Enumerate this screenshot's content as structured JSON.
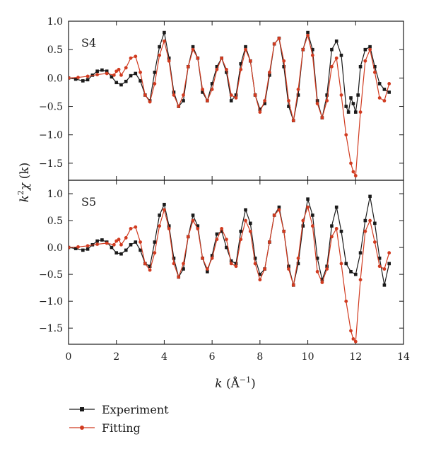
{
  "chart_data": [
    {
      "type": "line",
      "panel_label": "S4",
      "ylabel": "k²χ (k)",
      "xlim": [
        0,
        14
      ],
      "ylim": [
        -1.8,
        1.0
      ],
      "yticks": [
        1.0,
        0.5,
        0.0,
        -0.5,
        -1.0,
        -1.5
      ],
      "ytick_labels": [
        "1.0",
        "0.5",
        "0.0",
        "−0.5",
        "−1.0",
        "−1.5"
      ],
      "series": [
        {
          "name": "Experiment",
          "color": "#1a1a1a",
          "marker": "square",
          "x": [
            0.0,
            0.3,
            0.6,
            0.8,
            1.0,
            1.2,
            1.4,
            1.6,
            1.8,
            2.0,
            2.2,
            2.4,
            2.6,
            2.8,
            3.0,
            3.2,
            3.4,
            3.6,
            3.8,
            4.0,
            4.2,
            4.4,
            4.6,
            4.8,
            5.0,
            5.2,
            5.4,
            5.6,
            5.8,
            6.0,
            6.2,
            6.4,
            6.6,
            6.8,
            7.0,
            7.2,
            7.4,
            7.6,
            7.8,
            8.0,
            8.2,
            8.4,
            8.6,
            8.8,
            9.0,
            9.2,
            9.4,
            9.6,
            9.8,
            10.0,
            10.2,
            10.4,
            10.6,
            10.8,
            11.0,
            11.2,
            11.4,
            11.6,
            11.7,
            11.8,
            11.9,
            12.0,
            12.1,
            12.2,
            12.4,
            12.6,
            12.8,
            13.0,
            13.2,
            13.4
          ],
          "y": [
            0.0,
            -0.02,
            -0.05,
            -0.03,
            0.05,
            0.12,
            0.14,
            0.12,
            0.02,
            -0.08,
            -0.12,
            -0.06,
            0.04,
            0.08,
            -0.05,
            -0.3,
            -0.4,
            0.1,
            0.55,
            0.8,
            0.35,
            -0.25,
            -0.5,
            -0.4,
            0.2,
            0.55,
            0.35,
            -0.25,
            -0.4,
            -0.1,
            0.2,
            0.35,
            0.1,
            -0.4,
            -0.3,
            0.25,
            0.55,
            0.3,
            -0.3,
            -0.55,
            -0.45,
            0.05,
            0.6,
            0.7,
            0.2,
            -0.5,
            -0.75,
            -0.3,
            0.5,
            0.8,
            0.5,
            -0.4,
            -0.7,
            -0.3,
            0.5,
            0.65,
            0.4,
            -0.5,
            -0.6,
            -0.35,
            -0.45,
            -0.6,
            -0.3,
            0.2,
            0.5,
            0.55,
            0.2,
            -0.1,
            -0.2,
            -0.25
          ]
        },
        {
          "name": "Fitting",
          "color": "#d13b20",
          "marker": "circle",
          "x": [
            0.0,
            0.4,
            0.8,
            1.2,
            1.6,
            1.9,
            2.0,
            2.1,
            2.2,
            2.4,
            2.6,
            2.8,
            3.0,
            3.2,
            3.4,
            3.6,
            3.8,
            4.0,
            4.2,
            4.4,
            4.6,
            4.8,
            5.0,
            5.2,
            5.4,
            5.6,
            5.8,
            6.0,
            6.2,
            6.4,
            6.6,
            6.8,
            7.0,
            7.2,
            7.4,
            7.6,
            7.8,
            8.0,
            8.2,
            8.4,
            8.6,
            8.8,
            9.0,
            9.2,
            9.4,
            9.6,
            9.8,
            10.0,
            10.2,
            10.4,
            10.6,
            10.8,
            11.0,
            11.2,
            11.4,
            11.6,
            11.8,
            11.9,
            12.0,
            12.2,
            12.4,
            12.6,
            12.8,
            13.0,
            13.2,
            13.4
          ],
          "y": [
            0.0,
            0.01,
            0.03,
            0.06,
            0.08,
            0.05,
            0.12,
            0.15,
            0.05,
            0.18,
            0.35,
            0.38,
            0.1,
            -0.3,
            -0.42,
            -0.1,
            0.4,
            0.65,
            0.3,
            -0.3,
            -0.5,
            -0.3,
            0.2,
            0.5,
            0.35,
            -0.2,
            -0.4,
            -0.2,
            0.15,
            0.35,
            0.15,
            -0.3,
            -0.35,
            0.15,
            0.5,
            0.3,
            -0.3,
            -0.6,
            -0.4,
            0.1,
            0.6,
            0.7,
            0.3,
            -0.4,
            -0.75,
            -0.2,
            0.5,
            0.75,
            0.4,
            -0.45,
            -0.7,
            -0.4,
            0.2,
            0.35,
            -0.3,
            -1.0,
            -1.5,
            -1.65,
            -1.72,
            -0.6,
            0.3,
            0.5,
            0.1,
            -0.35,
            -0.4,
            -0.1
          ]
        }
      ]
    },
    {
      "type": "line",
      "panel_label": "S5",
      "xlabel": "k (Å−1)",
      "xlim": [
        0,
        14
      ],
      "ylim": [
        -1.8,
        1.25
      ],
      "xticks": [
        0,
        2,
        4,
        6,
        8,
        10,
        12,
        14
      ],
      "yticks": [
        1.0,
        0.5,
        0.0,
        -0.5,
        -1.0,
        -1.5
      ],
      "ytick_labels": [
        "1.0",
        "0.5",
        "0.0",
        "−0.5",
        "−1.0",
        "−1.5"
      ],
      "series": [
        {
          "name": "Experiment",
          "color": "#1a1a1a",
          "marker": "square",
          "x": [
            0.0,
            0.3,
            0.6,
            0.8,
            1.0,
            1.2,
            1.4,
            1.6,
            1.8,
            2.0,
            2.2,
            2.4,
            2.6,
            2.8,
            3.0,
            3.2,
            3.4,
            3.6,
            3.8,
            4.0,
            4.2,
            4.4,
            4.6,
            4.8,
            5.0,
            5.2,
            5.4,
            5.6,
            5.8,
            6.0,
            6.2,
            6.4,
            6.6,
            6.8,
            7.0,
            7.2,
            7.4,
            7.6,
            7.8,
            8.0,
            8.2,
            8.4,
            8.6,
            8.8,
            9.0,
            9.2,
            9.4,
            9.6,
            9.8,
            10.0,
            10.2,
            10.4,
            10.6,
            10.8,
            11.0,
            11.2,
            11.4,
            11.6,
            11.8,
            12.0,
            12.2,
            12.4,
            12.6,
            12.8,
            13.0,
            13.2,
            13.4
          ],
          "y": [
            0.0,
            -0.02,
            -0.05,
            -0.03,
            0.05,
            0.12,
            0.14,
            0.1,
            0.0,
            -0.1,
            -0.12,
            -0.05,
            0.05,
            0.1,
            -0.05,
            -0.3,
            -0.35,
            0.1,
            0.6,
            0.8,
            0.4,
            -0.2,
            -0.55,
            -0.4,
            0.2,
            0.6,
            0.4,
            -0.2,
            -0.45,
            -0.15,
            0.25,
            0.3,
            0.0,
            -0.25,
            -0.3,
            0.3,
            0.7,
            0.45,
            -0.2,
            -0.5,
            -0.4,
            0.1,
            0.6,
            0.75,
            0.3,
            -0.35,
            -0.7,
            -0.3,
            0.4,
            0.9,
            0.6,
            -0.2,
            -0.6,
            -0.35,
            0.4,
            0.75,
            0.3,
            -0.3,
            -0.45,
            -0.5,
            -0.1,
            0.5,
            0.95,
            0.45,
            -0.2,
            -0.7,
            -0.3
          ]
        },
        {
          "name": "Fitting",
          "color": "#d13b20",
          "marker": "circle",
          "x": [
            0.0,
            0.4,
            0.8,
            1.2,
            1.6,
            1.9,
            2.0,
            2.1,
            2.2,
            2.4,
            2.6,
            2.8,
            3.0,
            3.2,
            3.4,
            3.6,
            3.8,
            4.0,
            4.2,
            4.4,
            4.6,
            4.8,
            5.0,
            5.2,
            5.4,
            5.6,
            5.8,
            6.0,
            6.2,
            6.4,
            6.6,
            6.8,
            7.0,
            7.2,
            7.4,
            7.6,
            7.8,
            8.0,
            8.2,
            8.4,
            8.6,
            8.8,
            9.0,
            9.2,
            9.4,
            9.6,
            9.8,
            10.0,
            10.2,
            10.4,
            10.6,
            10.8,
            11.0,
            11.2,
            11.4,
            11.6,
            11.8,
            11.9,
            12.0,
            12.2,
            12.4,
            12.6,
            12.8,
            13.0,
            13.2,
            13.4
          ],
          "y": [
            0.0,
            0.01,
            0.03,
            0.06,
            0.08,
            0.05,
            0.12,
            0.15,
            0.05,
            0.18,
            0.35,
            0.38,
            0.1,
            -0.3,
            -0.42,
            -0.1,
            0.4,
            0.7,
            0.35,
            -0.3,
            -0.55,
            -0.3,
            0.2,
            0.5,
            0.35,
            -0.2,
            -0.4,
            -0.2,
            0.15,
            0.35,
            0.15,
            -0.3,
            -0.35,
            0.15,
            0.5,
            0.3,
            -0.3,
            -0.6,
            -0.4,
            0.1,
            0.6,
            0.7,
            0.3,
            -0.4,
            -0.7,
            -0.2,
            0.5,
            0.75,
            0.4,
            -0.45,
            -0.65,
            -0.4,
            0.2,
            0.35,
            -0.3,
            -1.0,
            -1.55,
            -1.7,
            -1.75,
            -0.6,
            0.3,
            0.5,
            0.1,
            -0.35,
            -0.4,
            -0.1
          ]
        }
      ]
    }
  ],
  "legend": {
    "experiment_label": "Experiment",
    "fitting_label": "Fitting"
  },
  "shared_ylabel": "k²χ (k)",
  "shared_xlabel": "k (Å−1)"
}
